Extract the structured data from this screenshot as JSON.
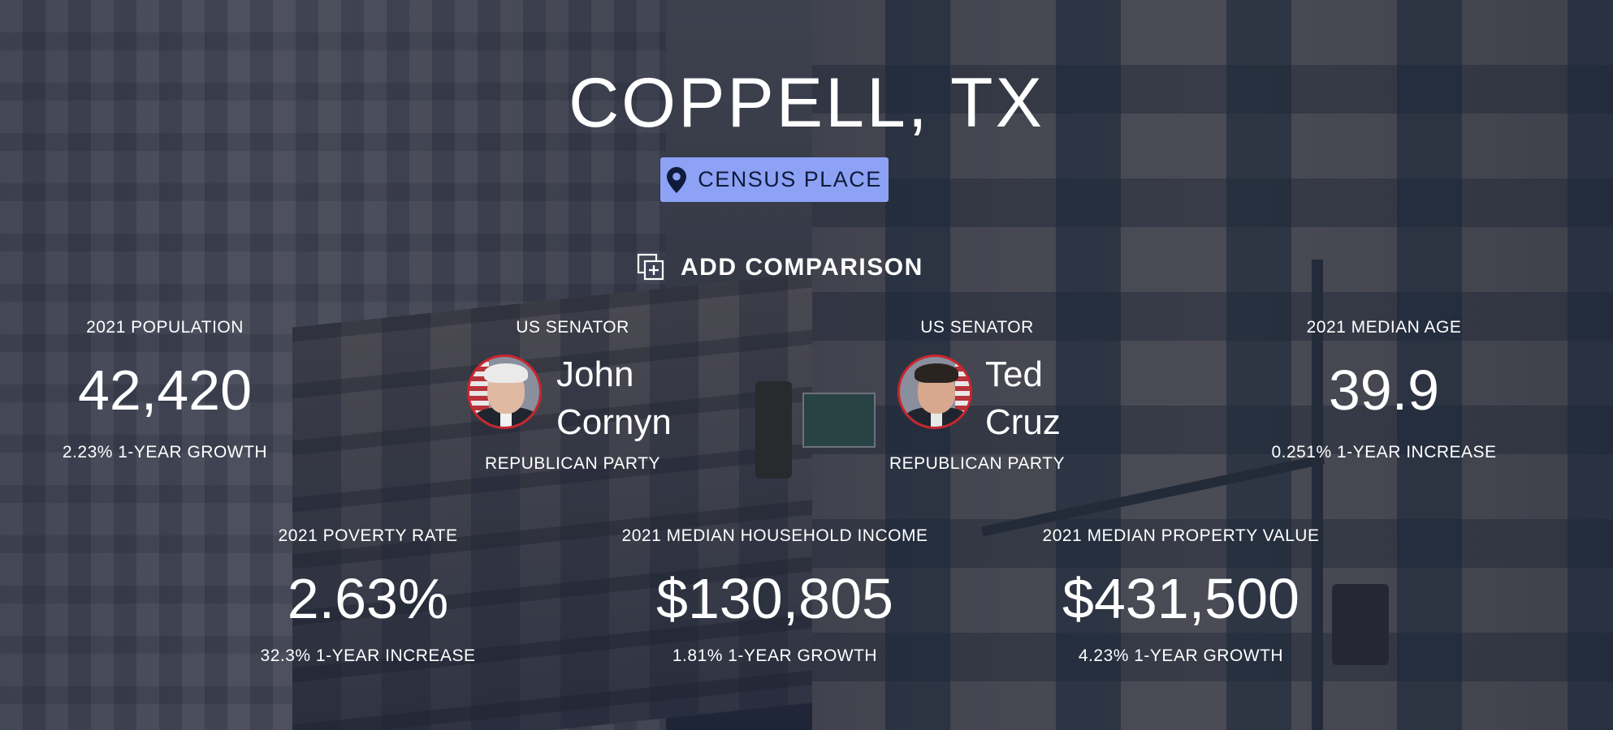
{
  "place": {
    "title": "COPPELL, TX",
    "badge_label": "CENSUS PLACE",
    "badge_icon": "map-pin-icon",
    "add_comparison_label": "ADD COMPARISON",
    "add_comparison_icon": "add-comparison-icon"
  },
  "colors": {
    "badge_bg": "#8da2f5",
    "badge_text": "#101a3a",
    "photo_border": "#c8262e",
    "overlay": "rgba(28,36,56,0.58)"
  },
  "stats_top": {
    "population": {
      "label": "2021 POPULATION",
      "value": "42,420",
      "change": "2.23% 1-YEAR GROWTH"
    },
    "median_age": {
      "label": "2021 MEDIAN AGE",
      "value": "39.9",
      "change": "0.251% 1-YEAR INCREASE"
    }
  },
  "senators": [
    {
      "label": "US SENATOR",
      "first_name": "John",
      "last_name": "Cornyn",
      "party": "REPUBLICAN PARTY"
    },
    {
      "label": "US SENATOR",
      "first_name": "Ted",
      "last_name": "Cruz",
      "party": "REPUBLICAN PARTY"
    }
  ],
  "stats_bottom": {
    "poverty_rate": {
      "label": "2021 POVERTY RATE",
      "value": "2.63%",
      "change": "32.3% 1-YEAR INCREASE"
    },
    "household_income": {
      "label": "2021 MEDIAN HOUSEHOLD INCOME",
      "value": "$130,805",
      "change": "1.81% 1-YEAR GROWTH"
    },
    "property_value": {
      "label": "2021 MEDIAN PROPERTY VALUE",
      "value": "$431,500",
      "change": "4.23% 1-YEAR GROWTH"
    }
  }
}
